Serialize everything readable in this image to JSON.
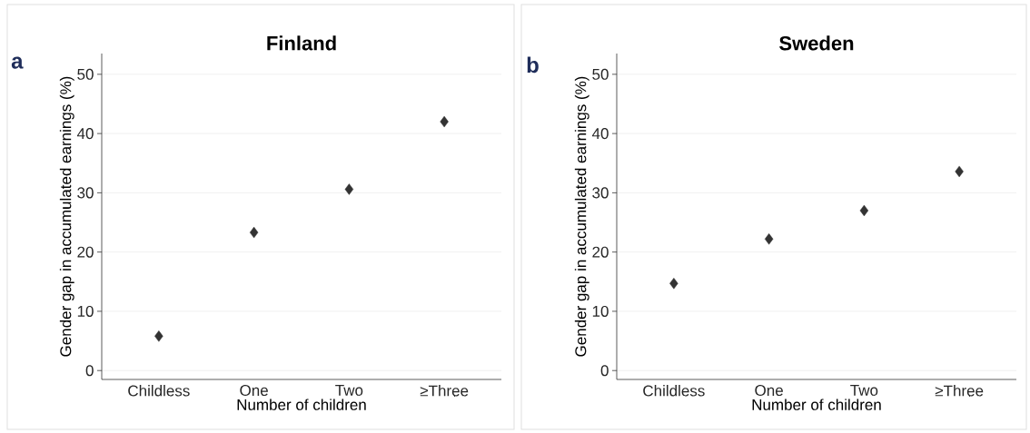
{
  "chart_data": [
    {
      "type": "scatter",
      "title": "Finland",
      "annotations": [
        "a"
      ],
      "xlabel": "Number of children",
      "ylabel": "Gender gap in accumulated earnings (%)",
      "categories": [
        "Childless",
        "One",
        "Two",
        "≥Three"
      ],
      "series": [
        {
          "color": "#333333",
          "values": [
            5.8,
            23.3,
            30.6,
            42.0
          ]
        }
      ],
      "ylim": [
        -1.5,
        53.5
      ],
      "yticks": [
        0,
        10,
        20,
        30,
        40,
        50
      ],
      "grid": "y",
      "marker": "diamond"
    },
    {
      "type": "scatter",
      "title": "Sweden",
      "annotations": [
        "b"
      ],
      "xlabel": "Number of children",
      "ylabel": "Gender gap in accumulated earnings (%)",
      "categories": [
        "Childless",
        "One",
        "Two",
        "≥Three"
      ],
      "series": [
        {
          "color": "#333333",
          "values": [
            14.7,
            22.2,
            27.0,
            33.6
          ]
        }
      ],
      "ylim": [
        -1.5,
        53.5
      ],
      "yticks": [
        0,
        10,
        20,
        30,
        40,
        50
      ],
      "grid": "y",
      "marker": "diamond"
    }
  ]
}
